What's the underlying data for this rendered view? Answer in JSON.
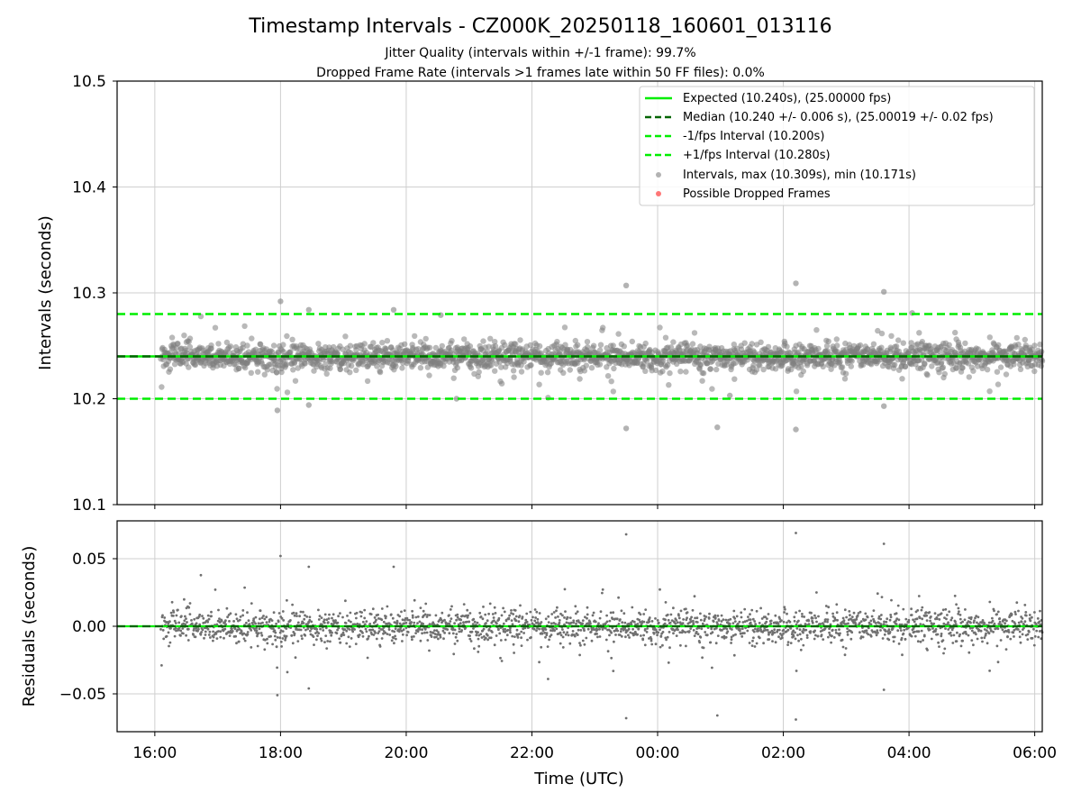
{
  "chart_data": {
    "type": "scatter",
    "title": "Timestamp Intervals - CZ000K_20250118_160601_013116",
    "subtitle_lines": [
      "Jitter Quality (intervals within +/-1 frame): 99.7%",
      "Dropped Frame Rate (intervals >1 frames late within 50 FF files): 0.0%"
    ],
    "xlabel": "Time (UTC)",
    "x_ticks": [
      "16:00",
      "18:00",
      "20:00",
      "22:00",
      "00:00",
      "02:00",
      "04:00",
      "06:00"
    ],
    "x_range_hours": [
      -0.6,
      14.12
    ],
    "grid": true,
    "legend_position": "top-right",
    "panels": [
      {
        "ylabel": "Intervals (seconds)",
        "ylim": [
          10.1,
          10.5
        ],
        "y_ticks": [
          "10.1",
          "10.2",
          "10.3",
          "10.4",
          "10.5"
        ],
        "reference_lines": [
          {
            "name": "Expected (10.240s), (25.00000 fps)",
            "value": 10.24,
            "style": "solid",
            "color": "#00ee00"
          },
          {
            "name": "Median (10.240 +/- 0.006 s), (25.00019 +/- 0.02 fps)",
            "value": 10.24,
            "style": "dashed",
            "color": "#006400"
          },
          {
            "name": "-1/fps Interval (10.200s)",
            "value": 10.2,
            "style": "dashed",
            "color": "#00ee00"
          },
          {
            "name": "+1/fps Interval (10.280s)",
            "value": 10.28,
            "style": "dashed",
            "color": "#00ee00"
          }
        ],
        "series": [
          {
            "name": "Intervals, max (10.309s), min (10.171s)",
            "color": "#808080",
            "marker": "circle",
            "center": 10.24,
            "spread_sd": 0.006,
            "x_start_hours": 0.1,
            "x_end_hours": 14.12,
            "outliers": [
              {
                "x": 7.5,
                "y": 10.307
              },
              {
                "x": 10.2,
                "y": 10.309
              },
              {
                "x": 11.6,
                "y": 10.301
              },
              {
                "x": 2.0,
                "y": 10.292
              },
              {
                "x": 2.45,
                "y": 10.284
              },
              {
                "x": 3.8,
                "y": 10.284
              },
              {
                "x": 4.55,
                "y": 10.279
              },
              {
                "x": 12.05,
                "y": 10.281
              },
              {
                "x": 7.5,
                "y": 10.172
              },
              {
                "x": 10.2,
                "y": 10.171
              },
              {
                "x": 8.95,
                "y": 10.173
              },
              {
                "x": 1.95,
                "y": 10.189
              },
              {
                "x": 2.45,
                "y": 10.194
              },
              {
                "x": 11.6,
                "y": 10.193
              },
              {
                "x": 4.8,
                "y": 10.2
              },
              {
                "x": 9.15,
                "y": 10.203
              }
            ]
          },
          {
            "name": "Possible Dropped Frames",
            "color": "#ff5555",
            "marker": "circle",
            "points": []
          }
        ]
      },
      {
        "ylabel": "Residuals (seconds)",
        "ylim": [
          -0.078,
          0.078
        ],
        "y_ticks": [
          "0.05",
          "0.00",
          "−0.05"
        ],
        "reference_lines": [
          {
            "value": 0.0,
            "style": "solid",
            "color": "#00ee00"
          },
          {
            "value": 0.0,
            "style": "dashed",
            "color": "#006400"
          }
        ],
        "series": [
          {
            "name": "Residuals",
            "color": "#707070",
            "marker": "dot",
            "center": 0.0,
            "spread_sd": 0.006,
            "x_start_hours": 0.1,
            "x_end_hours": 14.12,
            "outliers": [
              {
                "x": 7.5,
                "y": 0.068
              },
              {
                "x": 10.2,
                "y": 0.069
              },
              {
                "x": 11.6,
                "y": 0.061
              },
              {
                "x": 2.0,
                "y": 0.052
              },
              {
                "x": 2.45,
                "y": 0.044
              },
              {
                "x": 3.8,
                "y": 0.044
              },
              {
                "x": 7.5,
                "y": -0.068
              },
              {
                "x": 10.2,
                "y": -0.069
              },
              {
                "x": 8.95,
                "y": -0.066
              },
              {
                "x": 1.95,
                "y": -0.051
              },
              {
                "x": 2.45,
                "y": -0.046
              },
              {
                "x": 11.6,
                "y": -0.047
              }
            ]
          }
        ]
      }
    ]
  }
}
